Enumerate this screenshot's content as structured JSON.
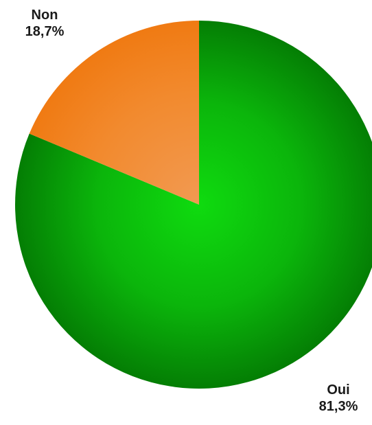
{
  "chart_data": {
    "type": "pie",
    "title": "",
    "categories": [
      "Non",
      "Oui"
    ],
    "values": [
      18.7,
      81.3
    ],
    "value_labels": [
      "18,7%",
      "81,3%"
    ],
    "colors": [
      "#f07f22",
      "#0aa30a"
    ],
    "start": "top, clockwise from Oui",
    "legend": "none"
  }
}
